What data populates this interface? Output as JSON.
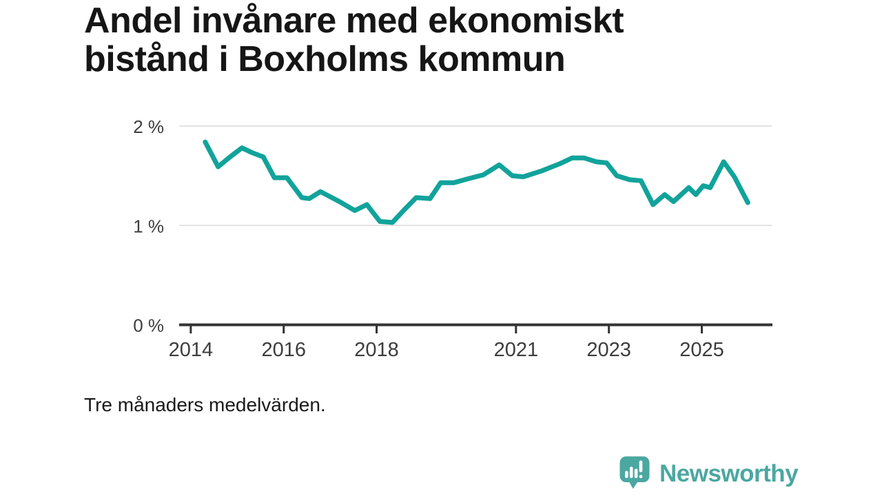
{
  "header": {
    "title_lines": [
      "Andel invånare med ekonomiskt",
      "bistånd i Boxholms kommun"
    ]
  },
  "footer": {
    "note": "Tre månaders medelvärden.",
    "brand": "Newsworthy"
  },
  "theme": {
    "accent": "#11a39b",
    "logo_teal": "#4ba7a1",
    "grid": "#d9d9d9",
    "axis": "#333333",
    "tick_text": "#3d3d3d",
    "title_text": "#161616"
  },
  "chart_data": {
    "type": "line",
    "title": "Andel invånare med ekonomiskt bistånd i Boxholms kommun",
    "subtitle": "Tre månaders medelvärden.",
    "xlabel": "",
    "ylabel": "",
    "xlim": [
      2013.75,
      2026.52
    ],
    "ylim": [
      0,
      2
    ],
    "grid": "horizontal",
    "legend": "none",
    "x_ticks": [
      {
        "v": 2014,
        "label": "2014"
      },
      {
        "v": 2016,
        "label": "2016"
      },
      {
        "v": 2018,
        "label": "2018"
      },
      {
        "v": 2021,
        "label": "2021"
      },
      {
        "v": 2023,
        "label": "2023"
      },
      {
        "v": 2025,
        "label": "2025"
      }
    ],
    "y_ticks": [
      {
        "v": 2,
        "label": "2 %"
      },
      {
        "v": 1,
        "label": "1 %"
      },
      {
        "v": 0,
        "label": "0 %"
      }
    ],
    "series": [
      {
        "name": "Andel invånare med ekonomiskt bistånd",
        "color": "#11a39b",
        "points": [
          [
            2014.31,
            1.84
          ],
          [
            2014.59,
            1.59
          ],
          [
            2014.82,
            1.68
          ],
          [
            2015.1,
            1.78
          ],
          [
            2015.33,
            1.73
          ],
          [
            2015.56,
            1.69
          ],
          [
            2015.8,
            1.48
          ],
          [
            2016.07,
            1.48
          ],
          [
            2016.39,
            1.28
          ],
          [
            2016.55,
            1.27
          ],
          [
            2016.79,
            1.34
          ],
          [
            2017.2,
            1.24
          ],
          [
            2017.53,
            1.15
          ],
          [
            2017.79,
            1.21
          ],
          [
            2018.07,
            1.04
          ],
          [
            2018.34,
            1.03
          ],
          [
            2018.6,
            1.16
          ],
          [
            2018.85,
            1.28
          ],
          [
            2019.15,
            1.27
          ],
          [
            2019.38,
            1.43
          ],
          [
            2019.66,
            1.43
          ],
          [
            2019.97,
            1.47
          ],
          [
            2020.3,
            1.51
          ],
          [
            2020.64,
            1.61
          ],
          [
            2020.92,
            1.5
          ],
          [
            2021.16,
            1.49
          ],
          [
            2021.56,
            1.55
          ],
          [
            2021.94,
            1.62
          ],
          [
            2022.21,
            1.68
          ],
          [
            2022.46,
            1.68
          ],
          [
            2022.73,
            1.64
          ],
          [
            2022.95,
            1.63
          ],
          [
            2023.17,
            1.5
          ],
          [
            2023.45,
            1.46
          ],
          [
            2023.69,
            1.45
          ],
          [
            2023.95,
            1.21
          ],
          [
            2024.2,
            1.31
          ],
          [
            2024.39,
            1.24
          ],
          [
            2024.72,
            1.38
          ],
          [
            2024.87,
            1.31
          ],
          [
            2025.03,
            1.4
          ],
          [
            2025.18,
            1.38
          ],
          [
            2025.47,
            1.64
          ],
          [
            2025.7,
            1.49
          ],
          [
            2025.99,
            1.23
          ]
        ]
      }
    ]
  }
}
